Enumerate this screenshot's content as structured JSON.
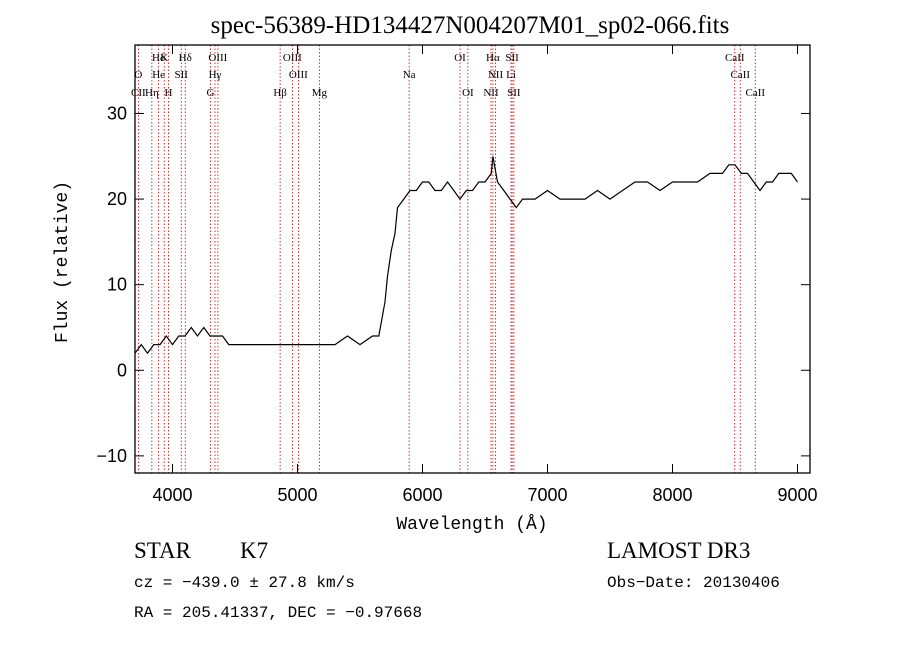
{
  "chart_data": {
    "type": "line",
    "title": "spec-56389-HD134427N004207M01_sp02-066.fits",
    "xlabel": "Wavelength (Å)",
    "ylabel": "Flux (relative)",
    "xlim": [
      3700,
      9100
    ],
    "ylim": [
      -12,
      38
    ],
    "xticks": [
      4000,
      5000,
      6000,
      7000,
      8000,
      9000
    ],
    "yticks": [
      -10,
      0,
      10,
      20,
      30
    ],
    "grid": false,
    "series": [
      {
        "name": "spectrum",
        "x": [
          3700,
          3750,
          3800,
          3850,
          3900,
          3950,
          4000,
          4050,
          4100,
          4150,
          4200,
          4250,
          4300,
          4350,
          4400,
          4450,
          4500,
          4600,
          4700,
          4800,
          4900,
          5000,
          5100,
          5200,
          5300,
          5400,
          5500,
          5600,
          5650,
          5700,
          5720,
          5750,
          5780,
          5800,
          5850,
          5900,
          5950,
          6000,
          6050,
          6100,
          6150,
          6200,
          6250,
          6300,
          6350,
          6400,
          6450,
          6500,
          6550,
          6563,
          6600,
          6650,
          6700,
          6750,
          6800,
          6900,
          7000,
          7100,
          7200,
          7300,
          7400,
          7500,
          7600,
          7700,
          7800,
          7900,
          8000,
          8100,
          8200,
          8300,
          8400,
          8450,
          8500,
          8550,
          8600,
          8650,
          8700,
          8750,
          8800,
          8850,
          8900,
          8950,
          9000
        ],
        "y": [
          2,
          3,
          2,
          3,
          3,
          4,
          3,
          4,
          4,
          5,
          4,
          5,
          4,
          4,
          4,
          3,
          3,
          3,
          3,
          3,
          3,
          3,
          3,
          3,
          3,
          4,
          3,
          4,
          4,
          8,
          11,
          14,
          16,
          19,
          20,
          21,
          21,
          22,
          22,
          21,
          21,
          22,
          21,
          20,
          21,
          21,
          22,
          22,
          23,
          25,
          22,
          21,
          20,
          19,
          20,
          20,
          21,
          20,
          20,
          20,
          21,
          20,
          21,
          22,
          22,
          21,
          22,
          22,
          22,
          23,
          23,
          24,
          24,
          23,
          23,
          22,
          21,
          22,
          22,
          23,
          23,
          23,
          22
        ]
      }
    ],
    "spectral_lines": {
      "top_row": [
        {
          "label": "Hδ",
          "x": 3889
        },
        {
          "label": "K",
          "x": 3934
        },
        {
          "label": "Hδ",
          "x": 4102
        },
        {
          "label": "OIII",
          "x": 4363
        },
        {
          "label": "OIII",
          "x": 4959
        },
        {
          "label": "OI",
          "x": 6300
        },
        {
          "label": "Hα",
          "x": 6563
        },
        {
          "label": "SII",
          "x": 6717
        },
        {
          "label": "CaII",
          "x": 8498
        }
      ],
      "mid_row": [
        {
          "label": "O",
          "x": 3727
        },
        {
          "label": "He",
          "x": 3889
        },
        {
          "label": "SII",
          "x": 4070
        },
        {
          "label": "Hγ",
          "x": 4340
        },
        {
          "label": "OIII",
          "x": 5007
        },
        {
          "label": "Na",
          "x": 5893
        },
        {
          "label": "NII",
          "x": 6584
        },
        {
          "label": "Li",
          "x": 6708
        },
        {
          "label": "CaII",
          "x": 8542
        }
      ],
      "low_row": [
        {
          "label": "CII",
          "x": 3727
        },
        {
          "label": "Hη",
          "x": 3835
        },
        {
          "label": "H",
          "x": 3968
        },
        {
          "label": "G",
          "x": 4304
        },
        {
          "label": "Hβ",
          "x": 4861
        },
        {
          "label": "Mg",
          "x": 5175
        },
        {
          "label": "OI",
          "x": 6363
        },
        {
          "label": "NII",
          "x": 6548
        },
        {
          "label": "SII",
          "x": 6731
        },
        {
          "label": "CaII",
          "x": 8662
        }
      ]
    }
  },
  "info": {
    "class_label": "STAR",
    "subclass_label": "K7",
    "cz_text": "cz = −439.0 ± 27.8 km/s",
    "coords_text": "RA = 205.41337, DEC =  −0.97668",
    "survey_label": "LAMOST DR3",
    "obs_date_text": "Obs−Date: 20130406"
  }
}
